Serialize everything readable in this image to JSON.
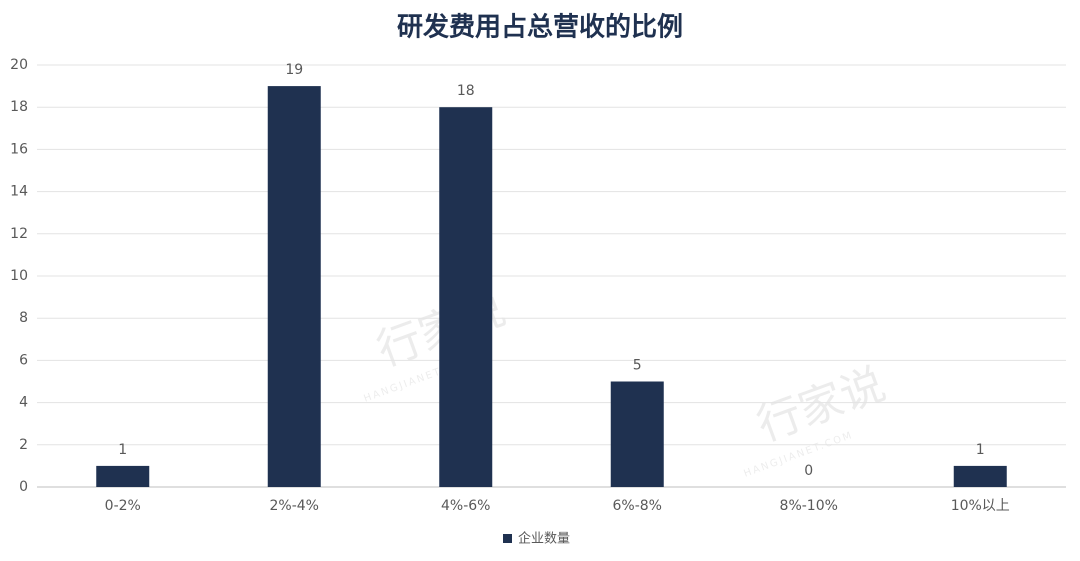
{
  "chart_data": {
    "type": "bar",
    "title": "研发费用占总营收的比例",
    "categories": [
      "0-2%",
      "2%-4%",
      "4%-6%",
      "6%-8%",
      "8%-10%",
      "10%以上"
    ],
    "series": [
      {
        "name": "企业数量",
        "color": "#1f3150",
        "values": [
          1,
          19,
          18,
          5,
          0,
          1
        ]
      }
    ],
    "ylim": [
      0,
      20
    ],
    "yticks": [
      0,
      2,
      4,
      6,
      8,
      10,
      12,
      14,
      16,
      18,
      20
    ],
    "grid": true,
    "legend": "bottom",
    "data_labels": true,
    "watermark": [
      "行家说",
      "HANGJIANET.COM"
    ]
  }
}
